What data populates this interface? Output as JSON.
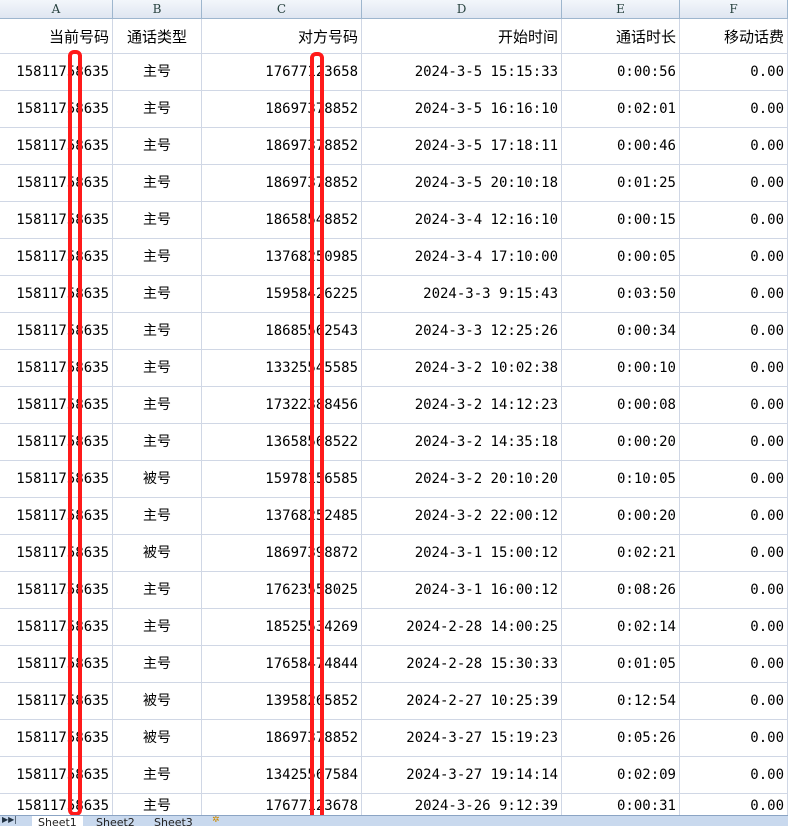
{
  "columns": [
    "A",
    "B",
    "C",
    "D",
    "E",
    "F"
  ],
  "headers": [
    "当前号码",
    "通话类型",
    "对方号码",
    "开始时间",
    "通话时长",
    "移动话费"
  ],
  "rows": [
    [
      "15811758635",
      "主号",
      "17677123658",
      "2024-3-5 15:15:33",
      "0:00:56",
      "0.00"
    ],
    [
      "15811758635",
      "主号",
      "18697378852",
      "2024-3-5 16:16:10",
      "0:02:01",
      "0.00"
    ],
    [
      "15811758635",
      "主号",
      "18697378852",
      "2024-3-5 17:18:11",
      "0:00:46",
      "0.00"
    ],
    [
      "15811758635",
      "主号",
      "18697378852",
      "2024-3-5 20:10:18",
      "0:01:25",
      "0.00"
    ],
    [
      "15811758635",
      "主号",
      "18658548852",
      "2024-3-4 12:16:10",
      "0:00:15",
      "0.00"
    ],
    [
      "15811758635",
      "主号",
      "13768250985",
      "2024-3-4 17:10:00",
      "0:00:05",
      "0.00"
    ],
    [
      "15811758635",
      "主号",
      "15958426225",
      "2024-3-3 9:15:43",
      "0:03:50",
      "0.00"
    ],
    [
      "15811758635",
      "主号",
      "18685562543",
      "2024-3-3 12:25:26",
      "0:00:34",
      "0.00"
    ],
    [
      "15811758635",
      "主号",
      "13325545585",
      "2024-3-2 10:02:38",
      "0:00:10",
      "0.00"
    ],
    [
      "15811758635",
      "主号",
      "17322388456",
      "2024-3-2 14:12:23",
      "0:00:08",
      "0.00"
    ],
    [
      "15811758635",
      "主号",
      "13658568522",
      "2024-3-2 14:35:18",
      "0:00:20",
      "0.00"
    ],
    [
      "15811758635",
      "被号",
      "15978156585",
      "2024-3-2 20:10:20",
      "0:10:05",
      "0.00"
    ],
    [
      "15811758635",
      "主号",
      "13768252485",
      "2024-3-2 22:00:12",
      "0:00:20",
      "0.00"
    ],
    [
      "15811758635",
      "被号",
      "18697398872",
      "2024-3-1 15:00:12",
      "0:02:21",
      "0.00"
    ],
    [
      "15811758635",
      "主号",
      "17623558025",
      "2024-3-1 16:00:12",
      "0:08:26",
      "0.00"
    ],
    [
      "15811758635",
      "主号",
      "18525534269",
      "2024-2-28 14:00:25",
      "0:02:14",
      "0.00"
    ],
    [
      "15811758635",
      "主号",
      "17658474844",
      "2024-2-28 15:30:33",
      "0:01:05",
      "0.00"
    ],
    [
      "15811758635",
      "被号",
      "13958265852",
      "2024-2-27 10:25:39",
      "0:12:54",
      "0.00"
    ],
    [
      "15811758635",
      "被号",
      "18697378852",
      "2024-3-27 15:19:23",
      "0:05:26",
      "0.00"
    ],
    [
      "15811758635",
      "主号",
      "13425567584",
      "2024-3-27 19:14:14",
      "0:02:09",
      "0.00"
    ],
    [
      "15811758635",
      "主号",
      "17677123678",
      "2024-3-26 9:12:39",
      "0:00:31",
      "0.00"
    ]
  ],
  "sheet_tabs": [
    "Sheet1",
    "Sheet2",
    "Sheet3"
  ],
  "redaction_color": "#ff1a1a"
}
